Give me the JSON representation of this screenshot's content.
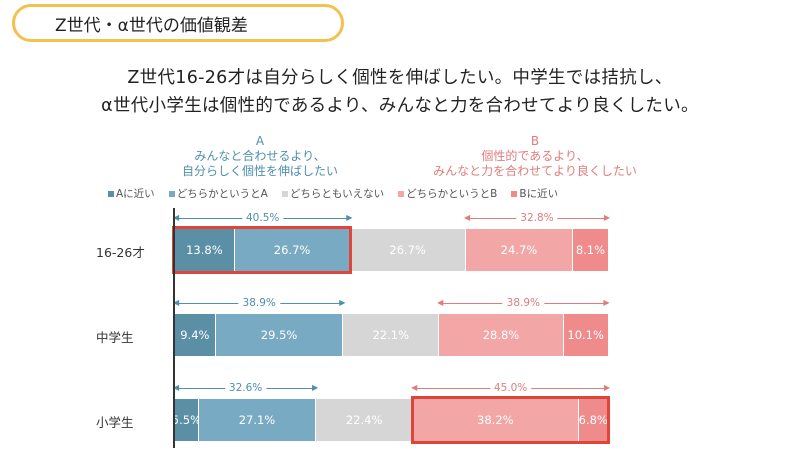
{
  "tag": {
    "label": "Z世代・α世代の価値観差"
  },
  "headline": {
    "line1": "Z世代16-26才は自分らしく個性を伸ばしたい。中学生では拮抗し、",
    "line2": "α世代小学生は個性的であるより、みんなと力を合わせてより良くしたい。"
  },
  "options": {
    "a": {
      "letter": "A",
      "line1": "みんなと合わせるより、",
      "line2": "自分らしく個性を伸ばしたい"
    },
    "b": {
      "letter": "B",
      "line1": "個性的であるより、",
      "line2": "みんなと力を合わせてより良くしたい"
    }
  },
  "colors": {
    "a_close": "#5a8fa6",
    "a_lean": "#79aac3",
    "neutral": "#d6d6d6",
    "b_lean": "#f2a6a6",
    "b_close": "#ef8b8b",
    "a_text": "#4f8fae",
    "b_text": "#e07c7c",
    "highlight": "#e0453a"
  },
  "chart_data": {
    "type": "bar",
    "orientation": "horizontal",
    "stacked": true,
    "categories": [
      "16-26才",
      "中学生",
      "小学生"
    ],
    "series": [
      {
        "name": "Aに近い",
        "values": [
          13.8,
          9.4,
          5.5
        ],
        "labels": [
          "13.8%",
          "9.4%",
          "5.5%"
        ]
      },
      {
        "name": "どちらかというとA",
        "values": [
          26.7,
          29.5,
          27.1
        ],
        "labels": [
          "26.7%",
          "29.5%",
          "27.1%"
        ]
      },
      {
        "name": "どちらともいえない",
        "values": [
          26.7,
          22.1,
          22.4
        ],
        "labels": [
          "26.7%",
          "22.1%",
          "22.4%"
        ]
      },
      {
        "name": "どちらかというとB",
        "values": [
          24.7,
          28.8,
          38.2
        ],
        "labels": [
          "24.7%",
          "28.8%",
          "38.2%"
        ]
      },
      {
        "name": "Bに近い",
        "values": [
          8.1,
          10.1,
          6.8
        ],
        "labels": [
          "8.1%",
          "10.1%",
          "6.8%"
        ]
      }
    ],
    "totals": {
      "a": [
        "40.5%",
        "38.9%",
        "32.6%"
      ],
      "b": [
        "32.8%",
        "38.9%",
        "45.0%"
      ]
    },
    "highlight": [
      {
        "row": 0,
        "side": "a"
      },
      {
        "row": 2,
        "side": "b"
      }
    ],
    "legend_position": "top",
    "xlim": [
      0,
      100
    ]
  }
}
